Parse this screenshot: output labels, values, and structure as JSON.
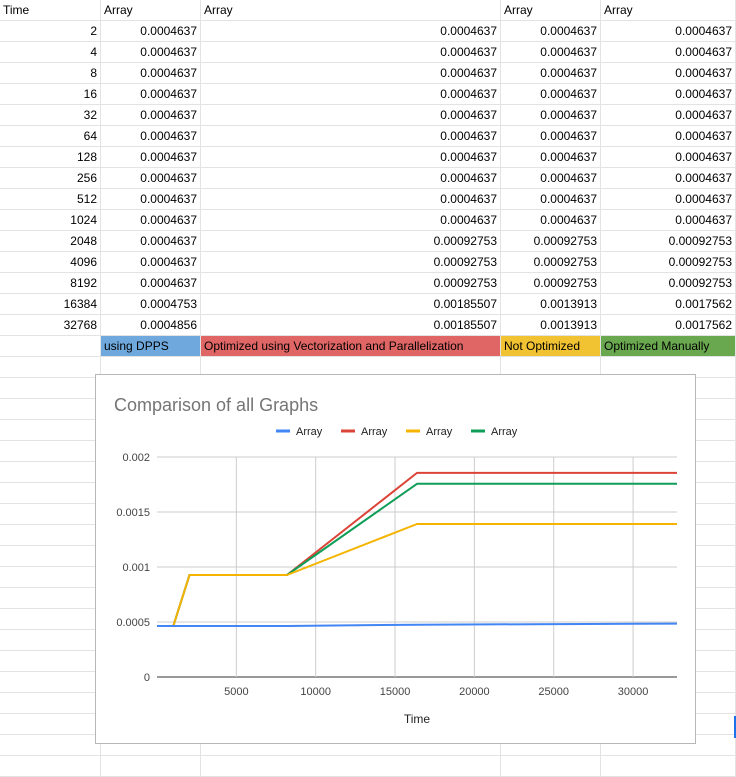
{
  "header": {
    "col0": "Time",
    "col1": "Array",
    "col2": "Array",
    "col3": "Array",
    "col4": "Array"
  },
  "rows": [
    [
      "2",
      "0.0004637",
      "0.0004637",
      "0.0004637",
      "0.0004637"
    ],
    [
      "4",
      "0.0004637",
      "0.0004637",
      "0.0004637",
      "0.0004637"
    ],
    [
      "8",
      "0.0004637",
      "0.0004637",
      "0.0004637",
      "0.0004637"
    ],
    [
      "16",
      "0.0004637",
      "0.0004637",
      "0.0004637",
      "0.0004637"
    ],
    [
      "32",
      "0.0004637",
      "0.0004637",
      "0.0004637",
      "0.0004637"
    ],
    [
      "64",
      "0.0004637",
      "0.0004637",
      "0.0004637",
      "0.0004637"
    ],
    [
      "128",
      "0.0004637",
      "0.0004637",
      "0.0004637",
      "0.0004637"
    ],
    [
      "256",
      "0.0004637",
      "0.0004637",
      "0.0004637",
      "0.0004637"
    ],
    [
      "512",
      "0.0004637",
      "0.0004637",
      "0.0004637",
      "0.0004637"
    ],
    [
      "1024",
      "0.0004637",
      "0.0004637",
      "0.0004637",
      "0.0004637"
    ],
    [
      "2048",
      "0.0004637",
      "0.00092753",
      "0.00092753",
      "0.00092753"
    ],
    [
      "4096",
      "0.0004637",
      "0.00092753",
      "0.00092753",
      "0.00092753"
    ],
    [
      "8192",
      "0.0004637",
      "0.00092753",
      "0.00092753",
      "0.00092753"
    ],
    [
      "16384",
      "0.0004753",
      "0.00185507",
      "0.0013913",
      "0.0017562"
    ],
    [
      "32768",
      "0.0004856",
      "0.00185507",
      "0.0013913",
      "0.0017562"
    ]
  ],
  "labels": [
    {
      "text": "using DPPS",
      "color": "#6fa8dc"
    },
    {
      "text": "Optimized using Vectorization and Parallelization",
      "color": "#e06666"
    },
    {
      "text": "Not Optimized",
      "color": "#f1c232"
    },
    {
      "text": "Optimized Manually",
      "color": "#6aa84f"
    }
  ],
  "chart_data": {
    "type": "line",
    "title": "Comparison of all Graphs",
    "xlabel": "Time",
    "ylabel": "",
    "xlim": [
      0,
      32768
    ],
    "ylim": [
      0,
      0.002
    ],
    "xticks": [
      5000,
      10000,
      15000,
      20000,
      25000,
      30000
    ],
    "xtick_labels": [
      "5000",
      "10000",
      "15000",
      "20000",
      "25000",
      "30000"
    ],
    "yticks": [
      0,
      0.0005,
      0.001,
      0.0015,
      0.002
    ],
    "ytick_labels": [
      "0",
      "0.0005",
      "0.001",
      "0.0015",
      "0.002"
    ],
    "grid": true,
    "legend_position": "top",
    "x": [
      2,
      4,
      8,
      16,
      32,
      64,
      128,
      256,
      512,
      1024,
      2048,
      4096,
      8192,
      16384,
      32768
    ],
    "series": [
      {
        "name": "Array",
        "color": "#4285f4",
        "values": [
          0.0004637,
          0.0004637,
          0.0004637,
          0.0004637,
          0.0004637,
          0.0004637,
          0.0004637,
          0.0004637,
          0.0004637,
          0.0004637,
          0.0004637,
          0.0004637,
          0.0004637,
          0.0004753,
          0.0004856
        ]
      },
      {
        "name": "Array",
        "color": "#db4437",
        "values": [
          0.0004637,
          0.0004637,
          0.0004637,
          0.0004637,
          0.0004637,
          0.0004637,
          0.0004637,
          0.0004637,
          0.0004637,
          0.0004637,
          0.00092753,
          0.00092753,
          0.00092753,
          0.00185507,
          0.00185507
        ]
      },
      {
        "name": "Array",
        "color": "#f4b400",
        "values": [
          0.0004637,
          0.0004637,
          0.0004637,
          0.0004637,
          0.0004637,
          0.0004637,
          0.0004637,
          0.0004637,
          0.0004637,
          0.0004637,
          0.00092753,
          0.00092753,
          0.00092753,
          0.0013913,
          0.0013913
        ]
      },
      {
        "name": "Array",
        "color": "#0f9d58",
        "values": [
          0.0004637,
          0.0004637,
          0.0004637,
          0.0004637,
          0.0004637,
          0.0004637,
          0.0004637,
          0.0004637,
          0.0004637,
          0.0004637,
          0.00092753,
          0.00092753,
          0.00092753,
          0.0017562,
          0.0017562
        ]
      }
    ]
  }
}
